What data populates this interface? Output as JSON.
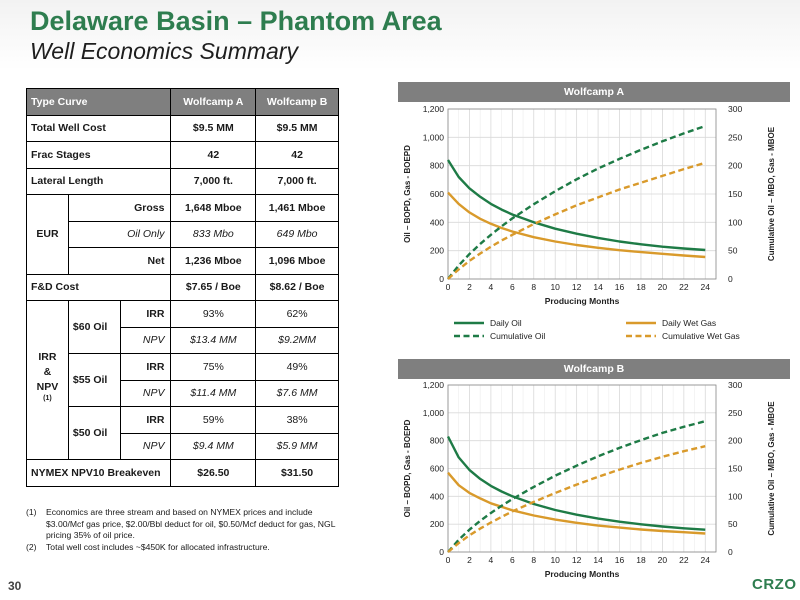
{
  "header": {
    "title": "Delaware Basin – Phantom Area",
    "subtitle": "Well Economics Summary"
  },
  "table": {
    "head": {
      "c0": "Type Curve",
      "c1": "Wolfcamp A",
      "c2": "Wolfcamp B"
    },
    "total_cost": {
      "label": "Total Well Cost",
      "a": "$9.5 MM",
      "b": "$9.5 MM"
    },
    "frac": {
      "label": "Frac Stages",
      "a": "42",
      "b": "42"
    },
    "lateral": {
      "label": "Lateral Length",
      "a": "7,000 ft.",
      "b": "7,000 ft."
    },
    "eur": {
      "label": "EUR",
      "gross": {
        "label": "Gross",
        "a": "1,648 Mboe",
        "b": "1,461 Mboe"
      },
      "oil": {
        "label": "Oil Only",
        "a": "833 Mbo",
        "b": "649 Mbo"
      },
      "net": {
        "label": "Net",
        "a": "1,236 Mboe",
        "b": "1,096 Mboe"
      }
    },
    "fd": {
      "label": "F&D Cost",
      "a": "$7.65 / Boe",
      "b": "$8.62 / Boe"
    },
    "irr_npv": {
      "label_l1": "IRR",
      "label_l2": "&",
      "label_l3": "NPV",
      "label_sup": "(1)",
      "irr_label": "IRR",
      "npv_label": "NPV",
      "o60": {
        "label": "$60 Oil",
        "irr_a": "93%",
        "irr_b": "62%",
        "npv_a": "$13.4 MM",
        "npv_b": "$9.2MM"
      },
      "o55": {
        "label": "$55 Oil",
        "irr_a": "75%",
        "irr_b": "49%",
        "npv_a": "$11.4 MM",
        "npv_b": "$7.6 MM"
      },
      "o50": {
        "label": "$50 Oil",
        "irr_a": "59%",
        "irr_b": "38%",
        "npv_a": "$9.4 MM",
        "npv_b": "$5.9 MM"
      }
    },
    "breakeven": {
      "label": "NYMEX NPV10 Breakeven",
      "a": "$26.50",
      "b": "$31.50"
    }
  },
  "footnotes": [
    {
      "num": "(1)",
      "text": "Economics are three stream and based on NYMEX prices and include $3.00/Mcf gas price, $2.00/Bbl deduct for oil, $0.50/Mcf deduct for gas, NGL pricing 35% of oil price."
    },
    {
      "num": "(2)",
      "text": "Total well cost includes ~$450K for allocated infrastructure."
    }
  ],
  "page_number": "30",
  "logo_text": "CRZO",
  "colors": {
    "green": "#1e7b46",
    "orange": "#d99a2b",
    "title_green": "#2e7d4f",
    "header_gray": "#7f7f7f"
  },
  "chart_data": [
    {
      "type": "line",
      "title": "Wolfcamp A",
      "xlabel": "Producing Months",
      "ylabel_left": "Oil – BOPD, Gas - BOEPD",
      "ylabel_right": "Cumulative Oil – MBO, Gas - MBOE",
      "x_ticks": [
        0,
        2,
        4,
        6,
        8,
        10,
        12,
        14,
        16,
        18,
        20,
        22,
        24
      ],
      "y_left_ticks": [
        "0",
        "200",
        "400",
        "600",
        "800",
        "1,000",
        "1,200"
      ],
      "y_right_ticks": [
        "0",
        "50",
        "100",
        "150",
        "200",
        "250",
        "300"
      ],
      "ylim_left": [
        0,
        1200
      ],
      "ylim_right": [
        0,
        300
      ],
      "x": [
        0,
        1,
        2,
        3,
        4,
        5,
        6,
        8,
        10,
        12,
        14,
        16,
        18,
        20,
        22,
        24
      ],
      "series": [
        {
          "name": "Daily Oil",
          "axis": "left",
          "style": "solid",
          "color": "#1e7b46",
          "values": [
            840,
            720,
            640,
            580,
            530,
            490,
            455,
            400,
            355,
            320,
            290,
            265,
            245,
            228,
            215,
            205
          ]
        },
        {
          "name": "Daily Wet Gas",
          "axis": "left",
          "style": "solid",
          "color": "#d99a2b",
          "values": [
            610,
            530,
            470,
            425,
            390,
            360,
            335,
            295,
            265,
            240,
            220,
            203,
            190,
            178,
            166,
            155
          ]
        },
        {
          "name": "Cumulative Oil",
          "axis": "right",
          "style": "dashed",
          "color": "#1e7b46",
          "values": [
            0,
            24,
            44,
            62,
            78,
            93,
            107,
            132,
            155,
            176,
            195,
            212,
            228,
            243,
            257,
            270
          ]
        },
        {
          "name": "Cumulative Wet Gas",
          "axis": "right",
          "style": "dashed",
          "color": "#d99a2b",
          "values": [
            0,
            17,
            32,
            45,
            57,
            68,
            78,
            97,
            114,
            130,
            144,
            158,
            170,
            182,
            194,
            205
          ]
        }
      ],
      "legend": "bottom"
    },
    {
      "type": "line",
      "title": "Wolfcamp B",
      "xlabel": "Producing Months",
      "ylabel_left": "Oil – BOPD, Gas - BOEPD",
      "ylabel_right": "Cumulative Oil – MBO, Gas - MBOE",
      "x_ticks": [
        0,
        2,
        4,
        6,
        8,
        10,
        12,
        14,
        16,
        18,
        20,
        22,
        24
      ],
      "y_left_ticks": [
        "0",
        "200",
        "400",
        "600",
        "800",
        "1,000",
        "1,200"
      ],
      "y_right_ticks": [
        "0",
        "50",
        "100",
        "150",
        "200",
        "250",
        "300"
      ],
      "ylim_left": [
        0,
        1200
      ],
      "ylim_right": [
        0,
        300
      ],
      "x": [
        0,
        1,
        2,
        3,
        4,
        5,
        6,
        8,
        10,
        12,
        14,
        16,
        18,
        20,
        22,
        24
      ],
      "series": [
        {
          "name": "Daily Oil",
          "axis": "left",
          "style": "solid",
          "color": "#1e7b46",
          "values": [
            830,
            680,
            590,
            525,
            475,
            435,
            400,
            345,
            302,
            268,
            240,
            218,
            199,
            183,
            170,
            160
          ]
        },
        {
          "name": "Daily Wet Gas",
          "axis": "left",
          "style": "solid",
          "color": "#d99a2b",
          "values": [
            570,
            480,
            425,
            385,
            350,
            325,
            300,
            262,
            233,
            210,
            190,
            175,
            162,
            151,
            142,
            133
          ]
        },
        {
          "name": "Cumulative Oil",
          "axis": "right",
          "style": "dashed",
          "color": "#1e7b46",
          "values": [
            0,
            22,
            40,
            56,
            70,
            83,
            95,
            117,
            137,
            155,
            172,
            187,
            201,
            214,
            225,
            235
          ]
        },
        {
          "name": "Cumulative Wet Gas",
          "axis": "right",
          "style": "dashed",
          "color": "#d99a2b",
          "values": [
            0,
            16,
            30,
            42,
            53,
            63,
            73,
            90,
            106,
            121,
            135,
            148,
            160,
            171,
            181,
            190
          ]
        }
      ]
    }
  ]
}
